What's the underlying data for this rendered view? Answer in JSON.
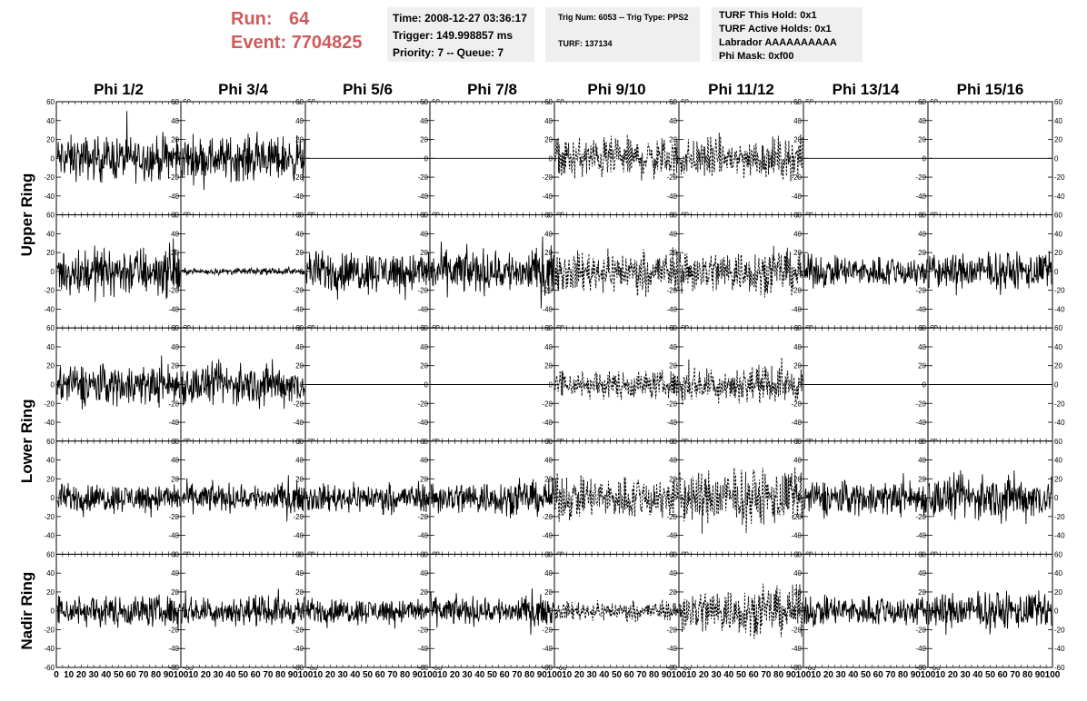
{
  "header": {
    "run_label": "Run:",
    "run_value": "64",
    "event_label": "Event:",
    "event_value": "7704825",
    "time": "Time: 2008-12-27 03:36:17",
    "trigger": "Trigger: 149.998857 ms",
    "priority": "Priority: 7 -- Queue: 7",
    "trig_num": "Trig Num: 6053 -- Trig Type: PPS2",
    "turf": "TURF: 137134",
    "turf_this_hold": "TURF This Hold: 0x1",
    "turf_active_holds": "TURF Active Holds: 0x1",
    "labrador": "Labrador AAAAAAAAAA",
    "phi_mask": "Phi Mask: 0xf00"
  },
  "chart_data": {
    "type": "line",
    "columns": [
      "Phi 1/2",
      "Phi 3/4",
      "Phi 5/6",
      "Phi 7/8",
      "Phi 9/10",
      "Phi 11/12",
      "Phi 13/14",
      "Phi 15/16"
    ],
    "rows": [
      "Upper Ring",
      "Upper Ring",
      "Lower Ring",
      "Lower Ring",
      "Nadir Ring"
    ],
    "row_labels": [
      "Upper Ring",
      "Lower Ring",
      "Nadir Ring"
    ],
    "ylim": [
      -60,
      60
    ],
    "yticks": [
      -60,
      -40,
      -20,
      0,
      20,
      40,
      60
    ],
    "xlim": [
      0,
      100
    ],
    "xticks": [
      0,
      10,
      20,
      30,
      40,
      50,
      60,
      70,
      80,
      90,
      100
    ],
    "n_samples": 260,
    "panel_amplitudes": [
      [
        14,
        14,
        0,
        0,
        13,
        13,
        0,
        0
      ],
      [
        16,
        2,
        13,
        14,
        13,
        14,
        10,
        12
      ],
      [
        13,
        13,
        0,
        0,
        9,
        11,
        0,
        0
      ],
      [
        9,
        9,
        9,
        11,
        14,
        18,
        11,
        14
      ],
      [
        10,
        9,
        8,
        9,
        6,
        15,
        10,
        12
      ]
    ],
    "dashed_columns": [
      4,
      5
    ],
    "grid": false,
    "trace_color": "#000000"
  }
}
